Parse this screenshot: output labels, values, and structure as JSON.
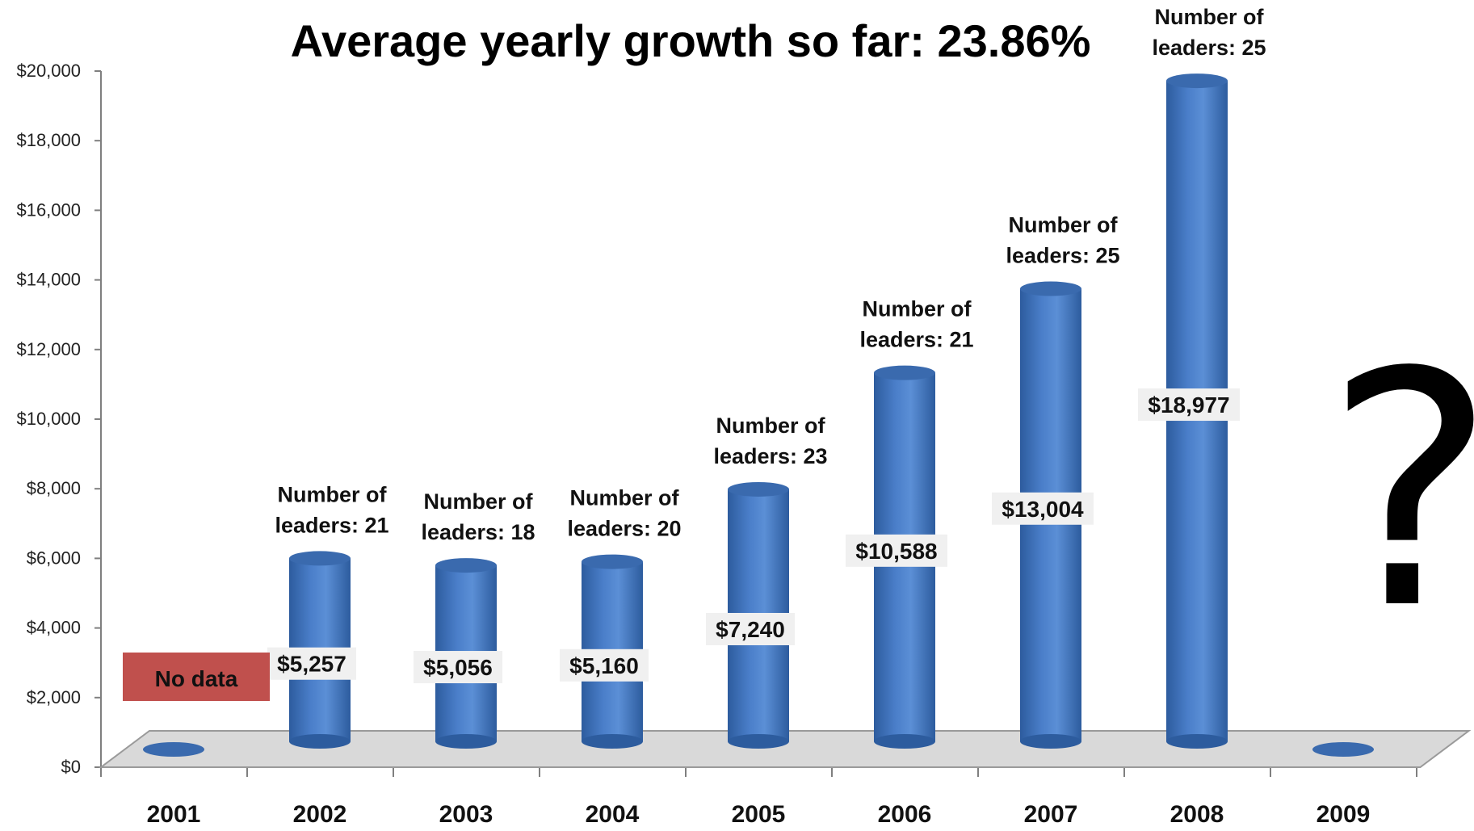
{
  "title": "Average yearly growth so far: 23.86%",
  "colors": {
    "bar": "#4a7ec9",
    "bar_dark": "#2d5c9e",
    "bar_top": "#3a6aae",
    "nodata": "#c0504d",
    "floor": "#d9d9d9"
  },
  "chart_data": {
    "type": "bar",
    "title": "Average yearly growth so far: 23.86%",
    "categories": [
      "2001",
      "2002",
      "2003",
      "2004",
      "2005",
      "2006",
      "2007",
      "2008",
      "2009"
    ],
    "values": [
      null,
      5257,
      5056,
      5160,
      7240,
      10588,
      13004,
      18977,
      null
    ],
    "value_labels": [
      "",
      "$5,257",
      "$5,056",
      "$5,160",
      "$7,240",
      "$10,588",
      "$13,004",
      "$18,977",
      ""
    ],
    "leaders_label_line1": [
      "",
      "Number of",
      "Number of",
      "Number of",
      "Number of",
      "Number of",
      "Number of",
      "Number of",
      ""
    ],
    "leaders_label_line2": [
      "",
      "leaders: 21",
      "leaders: 18",
      "leaders: 20",
      "leaders: 23",
      "leaders: 21",
      "leaders: 25",
      "leaders: 25",
      ""
    ],
    "ylim": [
      0,
      20000
    ],
    "yticks": [
      "$0",
      "$2,000",
      "$4,000",
      "$6,000",
      "$8,000",
      "$10,000",
      "$12,000",
      "$14,000",
      "$16,000",
      "$18,000",
      "$20,000"
    ],
    "no_data_label": "No data",
    "future_marker": "?"
  }
}
